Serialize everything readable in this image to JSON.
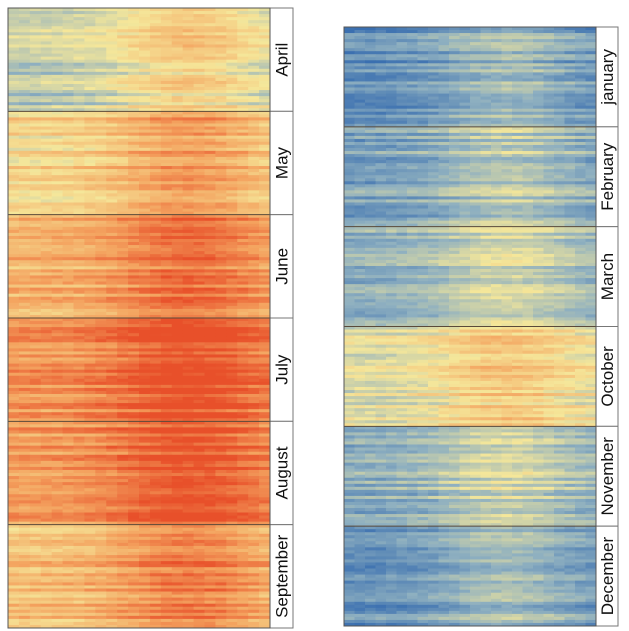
{
  "chart_data": [
    {
      "type": "heatmap",
      "description_scale": "warm",
      "panels": [
        {
          "month": "April",
          "intensity": 0.42
        },
        {
          "month": "May",
          "intensity": 0.62
        },
        {
          "month": "June",
          "intensity": 0.74
        },
        {
          "month": "July",
          "intensity": 0.84
        },
        {
          "month": "August",
          "intensity": 0.82
        },
        {
          "month": "September",
          "intensity": 0.7
        }
      ]
    },
    {
      "type": "heatmap",
      "description_scale": "cool",
      "panels": [
        {
          "month": "january",
          "intensity": 0.16
        },
        {
          "month": "February",
          "intensity": 0.24
        },
        {
          "month": "March",
          "intensity": 0.3
        },
        {
          "month": "October",
          "intensity": 0.48
        },
        {
          "month": "November",
          "intensity": 0.28
        },
        {
          "month": "December",
          "intensity": 0.18
        }
      ]
    }
  ],
  "colors": {
    "scale": [
      "#3a6fb0",
      "#8fb0c0",
      "#f5e79a",
      "#f4a460",
      "#e8502a"
    ],
    "panel_border": "#555555",
    "label_box_border": "#777777"
  }
}
